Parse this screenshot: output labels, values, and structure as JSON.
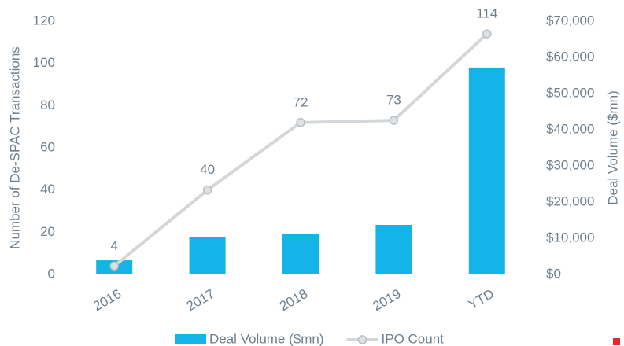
{
  "chart_data": {
    "type": "bar",
    "y_label": "Number of De-SPAC Transactions",
    "y2_label": "Deal Volume ($mn)",
    "categories": [
      "2016",
      "2017",
      "2018",
      "2019",
      "YTD"
    ],
    "series": [
      {
        "name": "Deal Volume ($mn)",
        "type": "bar",
        "color": "#15b4e8",
        "axis": "y2",
        "values": [
          3900,
          10400,
          11100,
          13700,
          57200
        ]
      },
      {
        "name": "IPO Count",
        "type": "line",
        "color": "#d3d7da",
        "values": [
          4,
          40,
          72,
          73,
          114
        ],
        "data_labels": true
      }
    ],
    "ylim": [
      0,
      120
    ],
    "yticks": [
      0,
      20,
      40,
      60,
      80,
      100,
      120
    ],
    "y2lim": [
      0,
      70000
    ],
    "y2ticks": [
      {
        "value": 0,
        "label": "$0"
      },
      {
        "value": 10000,
        "label": "$10,000"
      },
      {
        "value": 20000,
        "label": "$20,000"
      },
      {
        "value": 30000,
        "label": "$30,000"
      },
      {
        "value": 40000,
        "label": "$40,000"
      },
      {
        "value": 50000,
        "label": "$50,000"
      },
      {
        "value": 60000,
        "label": "$60,000"
      },
      {
        "value": 70000,
        "label": "$70,000"
      }
    ],
    "grid": false,
    "legend": "bottom"
  }
}
